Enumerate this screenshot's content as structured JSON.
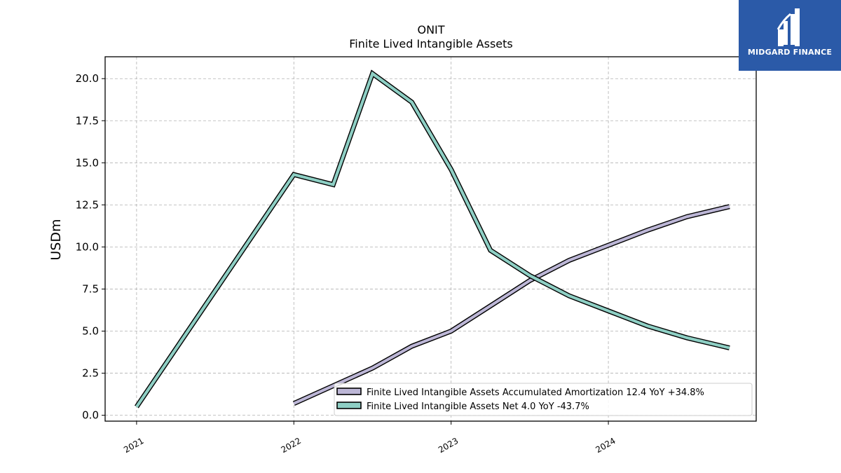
{
  "chart_data": {
    "type": "line",
    "title": "ONIT",
    "subtitle": "Finite Lived Intangible Assets",
    "xlabel": "",
    "ylabel": "USDm",
    "xlim": [
      2020.8,
      2024.94
    ],
    "ylim": [
      -0.35,
      21.3
    ],
    "x_ticks": [
      2021,
      2022,
      2023,
      2024
    ],
    "y_ticks": [
      0.0,
      2.5,
      5.0,
      7.5,
      10.0,
      12.5,
      15.0,
      17.5,
      20.0
    ],
    "y_tick_labels": [
      "0.0",
      "2.5",
      "5.0",
      "7.5",
      "10.0",
      "12.5",
      "15.0",
      "17.5",
      "20.0"
    ],
    "grid": true,
    "legend_position": "lower-right",
    "series": [
      {
        "name": "Finite Lived Intangible Assets Accumulated Amortization  12.4 YoY +34.8%",
        "color": "#bcb6d6",
        "points": [
          [
            2022.0,
            0.7
          ],
          [
            2022.5,
            2.8
          ],
          [
            2022.75,
            4.1
          ],
          [
            2023.0,
            5.0
          ],
          [
            2023.25,
            6.5
          ],
          [
            2023.5,
            8.0
          ],
          [
            2023.75,
            9.2
          ],
          [
            2024.0,
            10.1
          ],
          [
            2024.25,
            11.0
          ],
          [
            2024.5,
            11.8
          ],
          [
            2024.77,
            12.4
          ]
        ]
      },
      {
        "name": "Finite Lived Intangible Assets Net  4.0 YoY -43.7%",
        "color": "#8ecfc4",
        "points": [
          [
            2021.0,
            0.5
          ],
          [
            2022.0,
            14.3
          ],
          [
            2022.25,
            13.7
          ],
          [
            2022.5,
            20.3
          ],
          [
            2022.75,
            18.6
          ],
          [
            2023.0,
            14.6
          ],
          [
            2023.25,
            9.8
          ],
          [
            2023.5,
            8.3
          ],
          [
            2023.75,
            7.1
          ],
          [
            2024.0,
            6.2
          ],
          [
            2024.25,
            5.3
          ],
          [
            2024.5,
            4.6
          ],
          [
            2024.77,
            4.0
          ]
        ]
      }
    ]
  },
  "logo": {
    "text": "MIDGARD FINANCE",
    "background": "#2b5aa8"
  }
}
